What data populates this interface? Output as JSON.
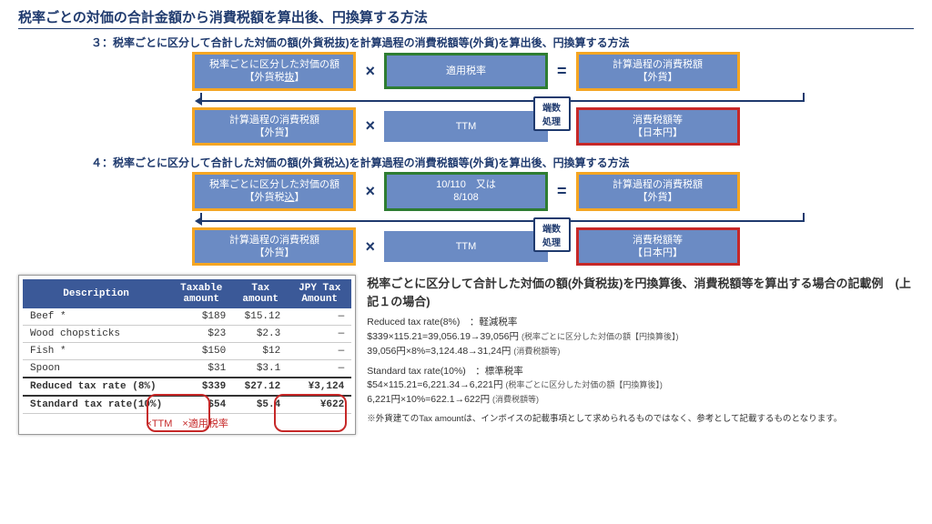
{
  "title": "税率ごとの対価の合計金額から消費税額を算出後、円換算する方法",
  "method3": {
    "label": "３：税率ごとに区分して合計した対価の額(外貨税抜)を計算過程の消費税額等(外貨)を算出後、円換算する方法",
    "row1": {
      "box1_l1": "税率ごとに区分した対価の額",
      "box1_l2": "【外貨税",
      "box1_l2_u": "抜",
      "box1_l2_end": "】",
      "box2": "適用税率",
      "box3_l1": "計算過程の消費税額",
      "box3_l2": "【外貨】"
    },
    "row2": {
      "box1_l1": "計算過程の消費税額",
      "box1_l2": "【外貨】",
      "box2": "TTM",
      "box3_l1": "消費税額等",
      "box3_l2": "【日本円】",
      "badge": "端数処理"
    }
  },
  "method4": {
    "label": "４：税率ごとに区分して合計した対価の額(外貨税込)を計算過程の消費税額等(外貨)を算出後、円換算する方法",
    "row1": {
      "box1_l1": "税率ごとに区分した対価の額",
      "box1_l2": "【外貨税",
      "box1_l2_u": "込",
      "box1_l2_end": "】",
      "box2_l1": "10/110　又は",
      "box2_l2": "8/108",
      "box3_l1": "計算過程の消費税額",
      "box3_l2": "【外貨】"
    },
    "row2": {
      "box1_l1": "計算過程の消費税額",
      "box1_l2": "【外貨】",
      "box2": "TTM",
      "box3_l1": "消費税額等",
      "box3_l2": "【日本円】",
      "badge": "端数処理"
    }
  },
  "table": {
    "headers": [
      "Description",
      "Taxable amount",
      "Tax amount",
      "JPY Tax Amount"
    ],
    "rows": [
      [
        "Beef *",
        "$189",
        "$15.12",
        "—"
      ],
      [
        "Wood chopsticks",
        "$23",
        "$2.3",
        "—"
      ],
      [
        "Fish *",
        "$150",
        "$12",
        "—"
      ],
      [
        "Spoon",
        "$31",
        "$3.1",
        "—"
      ]
    ],
    "totals": [
      [
        "Reduced  tax rate (8%)",
        "$339",
        "$27.12",
        "¥3,124"
      ],
      [
        "Standard tax rate(10%)",
        "$54",
        "$5.4",
        "¥622"
      ]
    ],
    "note": "×TTM　×適用税率"
  },
  "explain": {
    "title": "税率ごとに区分して合計した対価の額(外貨税抜)を円換算後、消費税額等を算出する場合の記載例　(上記１の場合)",
    "reduced_label": "Reduced tax rate(8%)　：軽減税率",
    "reduced_calc1": "$339×115.21=39,056.19→39,056円",
    "reduced_calc1_note": "(税率ごとに区分した対価の額【円換算後】)",
    "reduced_calc2": "39,056円×8%=3,124.48→31,24円",
    "reduced_calc2_note": "(消費税額等)",
    "standard_label": "Standard tax rate(10%)　：標準税率",
    "standard_calc1": "$54×115.21=6,221.34→6,221円",
    "standard_calc1_note": "(税率ごとに区分した対価の額【円換算後】)",
    "standard_calc2": "6,221円×10%=622.1→622円",
    "standard_calc2_note": "(消費税額等)",
    "note": "※外貨建てのTax amountは、インボイスの記載事項として求められるものではなく、参考として記載するものとなります。"
  },
  "colors": {
    "primary": "#1f3a6e",
    "box": "#6b8bc4",
    "orange": "#f5a623",
    "green": "#2e7d32",
    "red": "#c62828"
  }
}
